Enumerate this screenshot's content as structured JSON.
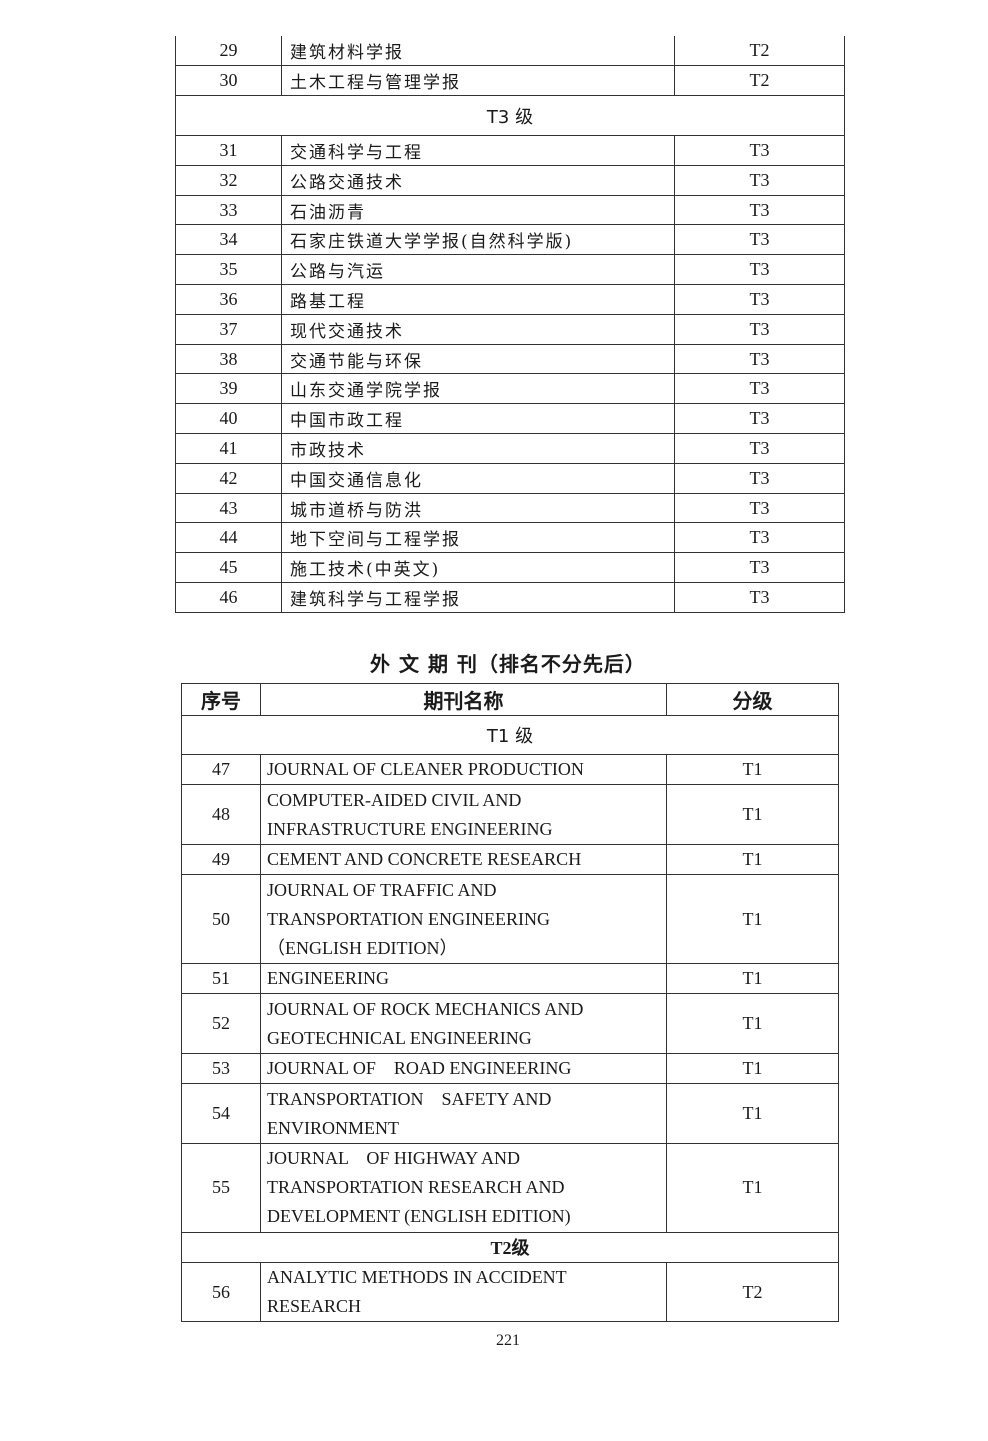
{
  "table1": {
    "rows": [
      {
        "no": "29",
        "name": "建筑材料学报",
        "level": "T2"
      },
      {
        "no": "30",
        "name": "土木工程与管理学报",
        "level": "T2"
      },
      {
        "section": "T3 级"
      },
      {
        "no": "31",
        "name": "交通科学与工程",
        "level": "T3"
      },
      {
        "no": "32",
        "name": "公路交通技术",
        "level": "T3"
      },
      {
        "no": "33",
        "name": "石油沥青",
        "level": "T3"
      },
      {
        "no": "34",
        "name": "石家庄铁道大学学报(自然科学版)",
        "level": "T3"
      },
      {
        "no": "35",
        "name": "公路与汽运",
        "level": "T3"
      },
      {
        "no": "36",
        "name": "路基工程",
        "level": "T3"
      },
      {
        "no": "37",
        "name": "现代交通技术",
        "level": "T3"
      },
      {
        "no": "38",
        "name": "交通节能与环保",
        "level": "T3"
      },
      {
        "no": "39",
        "name": "山东交通学院学报",
        "level": "T3"
      },
      {
        "no": "40",
        "name": "中国市政工程",
        "level": "T3"
      },
      {
        "no": "41",
        "name": "市政技术",
        "level": "T3"
      },
      {
        "no": "42",
        "name": "中国交通信息化",
        "level": "T3"
      },
      {
        "no": "43",
        "name": "城市道桥与防洪",
        "level": "T3"
      },
      {
        "no": "44",
        "name": "地下空间与工程学报",
        "level": "T3"
      },
      {
        "no": "45",
        "name": "施工技术(中英文)",
        "level": "T3"
      },
      {
        "no": "46",
        "name": "建筑科学与工程学报",
        "level": "T3"
      }
    ]
  },
  "foreign": {
    "title": "外 文 期 刊（排名不分先后）",
    "headers": [
      "序号",
      "期刊名称",
      "分级"
    ],
    "rows": [
      {
        "section": "T1 级"
      },
      {
        "no": "47",
        "lines": [
          "JOURNAL OF CLEANER PRODUCTION"
        ],
        "level": "T1"
      },
      {
        "no": "48",
        "lines": [
          "COMPUTER-AIDED CIVIL AND",
          "INFRASTRUCTURE ENGINEERING"
        ],
        "level": "T1"
      },
      {
        "no": "49",
        "lines": [
          "CEMENT AND CONCRETE RESEARCH"
        ],
        "level": "T1"
      },
      {
        "no": "50",
        "lines": [
          "JOURNAL OF TRAFFIC AND",
          "TRANSPORTATION ENGINEERING",
          "（ENGLISH EDITION）"
        ],
        "level": "T1"
      },
      {
        "no": "51",
        "lines": [
          "ENGINEERING"
        ],
        "level": "T1"
      },
      {
        "no": "52",
        "lines": [
          "JOURNAL OF ROCK MECHANICS AND",
          "GEOTECHNICAL ENGINEERING"
        ],
        "level": "T1"
      },
      {
        "no": "53",
        "lines": [
          "JOURNAL OF    ROAD ENGINEERING"
        ],
        "level": "T1"
      },
      {
        "no": "54",
        "lines": [
          "TRANSPORTATION    SAFETY AND",
          "ENVIRONMENT"
        ],
        "level": "T1"
      },
      {
        "no": "55",
        "lines": [
          "JOURNAL    OF HIGHWAY AND",
          "TRANSPORTATION RESEARCH AND",
          "DEVELOPMENT (ENGLISH EDITION)"
        ],
        "level": "T1"
      },
      {
        "section": "T2级",
        "bold": true
      },
      {
        "no": "56",
        "lines": [
          "ANALYTIC METHODS IN ACCIDENT",
          "RESEARCH"
        ],
        "level": "T2"
      }
    ]
  },
  "page_number": "221"
}
